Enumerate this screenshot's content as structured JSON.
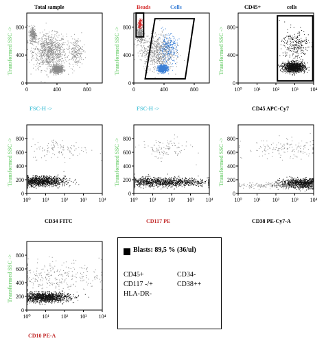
{
  "colors": {
    "events": "#111111",
    "background_events": "#8a8a8a",
    "beads": "#d42a2a",
    "cells": "#3a7fd6",
    "ssc_label": "#7fd47f",
    "fsc_label": "#5bc8dc",
    "pe_label": "#c43030",
    "black_label": "#000000"
  },
  "chart_data": [
    {
      "type": "scatter",
      "title": "Total sample",
      "xlabel": "FSC-H ->",
      "ylabel": "Transformed SSC ->",
      "xscale": "linear",
      "xlim": [
        0,
        1000
      ],
      "xticks": [
        "0",
        "400",
        "800"
      ],
      "ylim": [
        0,
        1000
      ],
      "yticks": [
        "0",
        "400",
        "800"
      ],
      "series": [
        {
          "color": "#8a8a8a",
          "clusters": [
            {
              "cx": 300,
              "cy": 450,
              "sx": 220,
              "sy": 250,
              "n": 900
            },
            {
              "cx": 400,
              "cy": 200,
              "sx": 70,
              "sy": 55,
              "n": 700
            },
            {
              "cx": 80,
              "cy": 700,
              "sx": 45,
              "sy": 120,
              "n": 250
            },
            {
              "cx": 650,
              "cy": 450,
              "sx": 90,
              "sy": 200,
              "n": 200
            }
          ]
        }
      ]
    },
    {
      "type": "scatter",
      "title": "",
      "xlabel": "FSC-H ->",
      "ylabel": "Transformed SSC ->",
      "xscale": "linear",
      "xlim": [
        0,
        1000
      ],
      "xticks": [
        "0",
        "400",
        "800"
      ],
      "ylim": [
        0,
        1000
      ],
      "yticks": [
        "0",
        "400",
        "800"
      ],
      "gate_labels": [
        "Beads",
        "Cells"
      ],
      "gates": [
        {
          "label": "Beads",
          "points": [
            [
              30,
              1000
            ],
            [
              130,
              1000
            ],
            [
              130,
              660
            ],
            [
              30,
              660
            ]
          ]
        },
        {
          "label": "Cells",
          "points": [
            [
              150,
              60
            ],
            [
              280,
              920
            ],
            [
              800,
              920
            ],
            [
              680,
              60
            ]
          ]
        }
      ],
      "series": [
        {
          "color": "#8a8a8a",
          "clusters": [
            {
              "cx": 300,
              "cy": 450,
              "sx": 220,
              "sy": 250,
              "n": 700
            },
            {
              "cx": 80,
              "cy": 700,
              "sx": 45,
              "sy": 120,
              "n": 250
            }
          ]
        },
        {
          "color": "#d42a2a",
          "clusters": [
            {
              "cx": 80,
              "cy": 850,
              "sx": 22,
              "sy": 55,
              "n": 160
            }
          ]
        },
        {
          "color": "#3a7fd6",
          "clusters": [
            {
              "cx": 380,
              "cy": 210,
              "sx": 60,
              "sy": 50,
              "n": 800
            },
            {
              "cx": 450,
              "cy": 500,
              "sx": 120,
              "sy": 200,
              "n": 260
            }
          ]
        }
      ]
    },
    {
      "type": "scatter",
      "title": "CD45+",
      "title_right": "cells",
      "xlabel": "CD45 APC-Cy7",
      "ylabel": "Transformed SSC ->",
      "xscale": "log",
      "xlim": [
        1,
        10000
      ],
      "xticks": [
        "10⁰",
        "10¹",
        "10²",
        "10³",
        "10⁴"
      ],
      "ylim": [
        0,
        1000
      ],
      "yticks": [
        "0",
        "400",
        "800"
      ],
      "gates": [
        {
          "label": "",
          "points": [
            [
              120,
              960
            ],
            [
              9000,
              960
            ],
            [
              9000,
              30
            ],
            [
              120,
              30
            ]
          ]
        }
      ],
      "series": [
        {
          "color": "#111111",
          "clusters": [
            {
              "cx": 900,
              "cy": 230,
              "sx": 0.13,
              "sy": 70,
              "n": 1200,
              "logx": true
            },
            {
              "cx": 1000,
              "cy": 550,
              "sx": 0.16,
              "sy": 220,
              "n": 250,
              "logx": true
            }
          ]
        }
      ]
    },
    {
      "type": "scatter",
      "title": "",
      "xlabel": "CD34 FITC",
      "ylabel": "Transformed SSC ->",
      "xscale": "log",
      "xlim": [
        1,
        10000
      ],
      "xticks": [
        "10⁰",
        "10¹",
        "10²",
        "10³",
        "10⁴"
      ],
      "ylim": [
        0,
        1000
      ],
      "yticks": [
        "0",
        "200",
        "400",
        "600",
        "800"
      ],
      "series": [
        {
          "color": "#111111",
          "clusters": [
            {
              "cx": 4,
              "cy": 180,
              "sx": 0.32,
              "sy": 70,
              "n": 1300,
              "logx": true
            },
            {
              "cx": 60,
              "cy": 650,
              "sx": 0.35,
              "sy": 150,
              "n": 120,
              "logx": true,
              "color": "#8a8a8a"
            }
          ]
        }
      ]
    },
    {
      "type": "scatter",
      "title": "",
      "xlabel": "CD117 PE",
      "ylabel": "Transformed SSC ->",
      "xscale": "log",
      "xlim": [
        1,
        10000
      ],
      "xticks": [
        "10⁰",
        "10¹",
        "10²",
        "10³",
        "10⁴"
      ],
      "ylim": [
        0,
        1000
      ],
      "yticks": [
        "0",
        "200",
        "400",
        "600",
        "800"
      ],
      "series": [
        {
          "color": "#111111",
          "clusters": [
            {
              "cx": 20,
              "cy": 170,
              "sx": 0.6,
              "sy": 65,
              "n": 1300,
              "logx": true
            },
            {
              "cx": 40,
              "cy": 650,
              "sx": 0.3,
              "sy": 150,
              "n": 110,
              "logx": true,
              "color": "#8a8a8a"
            }
          ]
        }
      ]
    },
    {
      "type": "scatter",
      "title": "",
      "xlabel": "CD38 PE-Cy7-A",
      "ylabel": "Transformed SSC ->",
      "xscale": "log",
      "xlim": [
        1,
        10000
      ],
      "xticks": [
        "10⁰",
        "10¹",
        "10²",
        "10³",
        "10⁴"
      ],
      "ylim": [
        0,
        1000
      ],
      "yticks": [
        "0",
        "200",
        "400",
        "600",
        "800"
      ],
      "series": [
        {
          "color": "#111111",
          "clusters": [
            {
              "cx": 3000,
              "cy": 150,
              "sx": 0.28,
              "sy": 65,
              "n": 1200,
              "logx": true
            },
            {
              "cx": 200,
              "cy": 120,
              "sx": 0.7,
              "sy": 40,
              "n": 260,
              "logx": true,
              "color": "#8a8a8a"
            },
            {
              "cx": 300,
              "cy": 650,
              "sx": 0.5,
              "sy": 140,
              "n": 150,
              "logx": true,
              "color": "#8a8a8a"
            }
          ]
        }
      ]
    },
    {
      "type": "scatter",
      "title": "",
      "xlabel": "CD10 PE-A",
      "ylabel": "Transformed SSC ->",
      "xscale": "log",
      "xlim": [
        1,
        10000
      ],
      "xticks": [
        "10⁰",
        "10¹",
        "10²",
        "10³",
        "10⁴"
      ],
      "ylim": [
        0,
        1000
      ],
      "yticks": [
        "0",
        "200",
        "400",
        "600",
        "800"
      ],
      "series": [
        {
          "color": "#111111",
          "clusters": [
            {
              "cx": 8,
              "cy": 190,
              "sx": 0.3,
              "sy": 70,
              "n": 1300,
              "logx": true
            },
            {
              "cx": 30,
              "cy": 500,
              "sx": 0.55,
              "sy": 220,
              "n": 300,
              "logx": true,
              "color": "#8a8a8a"
            }
          ]
        }
      ]
    }
  ],
  "legend": {
    "title": "Blasts: 89,5 % (36/ul)",
    "markers": [
      "CD45+",
      "CD34-",
      "CD117 -/+",
      "CD38++",
      "HLA-DR-"
    ]
  }
}
